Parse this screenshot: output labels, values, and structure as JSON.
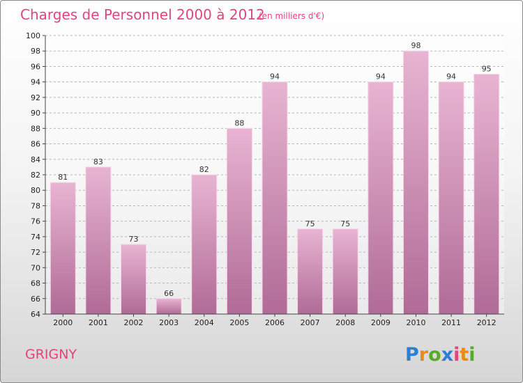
{
  "title": "Charges de Personnel 2000 à 2012",
  "subtitle": "(en milliers d'€)",
  "place": "GRIGNY",
  "logo": {
    "text": "Proxiti",
    "letters": [
      {
        "char": "P",
        "color": "#2b7fd6"
      },
      {
        "char": "r",
        "color": "#e88b1c"
      },
      {
        "char": "o",
        "color": "#5aaa2a"
      },
      {
        "char": "x",
        "color": "#2b7fd6"
      },
      {
        "char": "i",
        "color": "#e0457b"
      },
      {
        "char": "t",
        "color": "#e88b1c"
      },
      {
        "char": "i",
        "color": "#5aaa2a"
      }
    ]
  },
  "colors": {
    "accent": "#e0457b",
    "bar_top": "#e8b4d2",
    "bar_bottom": "#b06b96"
  },
  "chart_data": {
    "type": "bar",
    "categories": [
      "2000",
      "2001",
      "2002",
      "2003",
      "2004",
      "2005",
      "2006",
      "2007",
      "2008",
      "2009",
      "2010",
      "2011",
      "2012"
    ],
    "values": [
      81,
      83,
      73,
      66,
      82,
      88,
      94,
      75,
      75,
      94,
      98,
      94,
      95
    ],
    "ylim": [
      64,
      100
    ],
    "yticks": [
      64,
      66,
      68,
      70,
      72,
      74,
      76,
      78,
      80,
      82,
      84,
      86,
      88,
      90,
      92,
      94,
      96,
      98,
      100
    ],
    "grid": true
  }
}
